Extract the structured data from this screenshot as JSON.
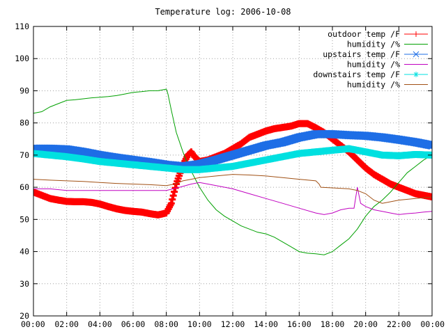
{
  "chart_data": {
    "type": "line",
    "title": "Temperature log: 2006-10-08",
    "xlabel": "",
    "ylabel": "",
    "x_unit": "hour of day",
    "xlim": [
      0,
      24
    ],
    "ylim": [
      20,
      110
    ],
    "grid": true,
    "legend_position": "top-right",
    "x_tick_labels": [
      "00:00",
      "02:00",
      "04:00",
      "06:00",
      "08:00",
      "10:00",
      "12:00",
      "14:00",
      "16:00",
      "18:00",
      "20:00",
      "22:00",
      "00:00"
    ],
    "y_ticks": [
      20,
      30,
      40,
      50,
      60,
      70,
      80,
      90,
      100,
      110
    ],
    "series": [
      {
        "name": "outdoor temp /F",
        "color": "#ff0000",
        "marker": "plus",
        "x": [
          0,
          0.5,
          1,
          1.5,
          2,
          2.5,
          3,
          3.5,
          4,
          4.5,
          5,
          5.5,
          6,
          6.5,
          7,
          7.5,
          8,
          8.3,
          8.6,
          9,
          9.3,
          9.5,
          9.7,
          10,
          10.5,
          11,
          11.5,
          12,
          12.5,
          13,
          13.5,
          14,
          14.5,
          15,
          15.5,
          16,
          16.5,
          17,
          17.5,
          18,
          18.5,
          19,
          19.5,
          20,
          20.5,
          21,
          21.5,
          22,
          22.5,
          23,
          23.5,
          24
        ],
        "values": [
          58.5,
          57.5,
          56.5,
          56,
          55.6,
          55.5,
          55.5,
          55.3,
          54.8,
          54,
          53.3,
          52.8,
          52.5,
          52.3,
          51.8,
          51.4,
          52,
          55,
          61,
          67,
          70,
          71,
          69.5,
          68,
          68.5,
          69.5,
          70.5,
          72,
          73.5,
          75.5,
          76.5,
          77.5,
          78.2,
          78.6,
          79,
          79.8,
          79.8,
          78.5,
          77,
          75,
          73,
          71,
          68.5,
          66,
          64,
          62.5,
          61,
          60,
          59,
          58,
          57.5,
          57
        ]
      },
      {
        "name": "humidity /%",
        "color": "#00a000",
        "marker": "none",
        "x": [
          0,
          0.5,
          1,
          1.5,
          2,
          2.5,
          3,
          3.5,
          4,
          4.5,
          5,
          5.5,
          6,
          6.5,
          7,
          7.5,
          8,
          8.1,
          8.3,
          8.6,
          9,
          9.3,
          9.6,
          10,
          10.5,
          11,
          11.5,
          12,
          12.5,
          13,
          13.5,
          14,
          14.5,
          15,
          15.5,
          16,
          16.5,
          17,
          17.5,
          18,
          18.5,
          19,
          19.5,
          20,
          20.5,
          21,
          21.5,
          22,
          22.5,
          23,
          23.5,
          24
        ],
        "values": [
          83,
          83.5,
          85,
          86,
          87,
          87.2,
          87.5,
          87.8,
          88,
          88.2,
          88.5,
          89,
          89.5,
          89.7,
          90,
          90,
          90.5,
          89,
          84,
          77,
          71,
          67,
          64,
          60,
          56,
          53,
          51,
          49.5,
          48,
          47,
          46,
          45.5,
          44.5,
          43,
          41.5,
          40,
          39.5,
          39.3,
          39,
          40,
          42,
          44,
          47,
          51,
          54,
          56,
          58.5,
          61.5,
          64.5,
          66.5,
          68.5,
          70
        ]
      },
      {
        "name": "upstairs temp /F",
        "color": "#1e6ee6",
        "marker": "cross",
        "x": [
          0,
          1,
          2,
          3,
          4,
          5,
          6,
          7,
          8,
          9,
          10,
          11,
          12,
          13,
          14,
          15,
          16,
          17,
          18,
          19,
          20,
          21,
          22,
          23,
          24
        ],
        "values": [
          72,
          72,
          71.8,
          71,
          70,
          69.2,
          68.5,
          67.8,
          67,
          66.5,
          67.2,
          68.5,
          70,
          71.5,
          73,
          74,
          75.5,
          76.5,
          76.5,
          76.2,
          76,
          75.5,
          74.8,
          74,
          73
        ]
      },
      {
        "name": "humidity /%",
        "color": "#c000c0",
        "marker": "none",
        "x": [
          0,
          1,
          2,
          3,
          4,
          5,
          6,
          7,
          8,
          8.8,
          9.5,
          10,
          10.5,
          11,
          12,
          13,
          14,
          15,
          16,
          17,
          17.5,
          18,
          18.5,
          19,
          19.3,
          19.5,
          19.7,
          20,
          20.5,
          21,
          21.5,
          22,
          22.5,
          23,
          23.5,
          24
        ],
        "values": [
          59.5,
          59.5,
          59,
          59,
          59,
          59,
          59,
          59,
          59,
          60,
          61,
          61.5,
          61,
          60.5,
          59.5,
          58,
          56.5,
          55,
          53.5,
          52,
          51.5,
          52,
          53,
          53.5,
          53.5,
          60,
          55,
          54,
          53,
          52.5,
          52,
          51.5,
          51.8,
          52,
          52.3,
          52.5
        ]
      },
      {
        "name": "downstairs temp /F",
        "color": "#00e0e0",
        "marker": "star",
        "x": [
          0,
          1,
          2,
          3,
          4,
          5,
          6,
          7,
          8,
          9,
          10,
          11,
          12,
          13,
          14,
          15,
          16,
          17,
          18,
          19,
          20,
          21,
          22,
          23,
          24
        ],
        "values": [
          70.5,
          70,
          69.5,
          68.8,
          68,
          67.5,
          67,
          66.5,
          66,
          65.5,
          65.5,
          66,
          66.5,
          67.5,
          68.5,
          69.5,
          70.5,
          71,
          71.5,
          72,
          71,
          70,
          69.8,
          70.2,
          70
        ]
      },
      {
        "name": "humidity /%",
        "color": "#a05014",
        "marker": "none",
        "x": [
          0,
          1,
          2,
          3,
          4,
          5,
          6,
          7,
          8,
          8.5,
          9,
          9.5,
          10,
          11,
          12,
          13,
          14,
          15,
          16,
          17,
          17.2,
          17.3,
          18,
          19,
          19.5,
          20,
          20.5,
          21,
          22,
          23,
          24
        ],
        "values": [
          62.5,
          62.2,
          62,
          61.8,
          61.5,
          61.2,
          61,
          60.8,
          60.5,
          61,
          62,
          62.5,
          63,
          63.5,
          64,
          63.8,
          63.5,
          63,
          62.5,
          62,
          61,
          60,
          59.8,
          59.5,
          59,
          58,
          56,
          55,
          56,
          56.5,
          57
        ]
      }
    ]
  }
}
